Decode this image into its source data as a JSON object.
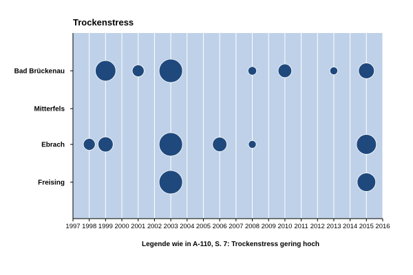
{
  "chart_data": {
    "type": "scatter",
    "title": "Trockenstress",
    "caption": "Legende wie in A-110, S. 7: Trockenstress gering hoch",
    "x_ticks": [
      1997,
      1998,
      1999,
      2000,
      2001,
      2002,
      2003,
      2004,
      2005,
      2006,
      2007,
      2008,
      2009,
      2010,
      2011,
      2012,
      2013,
      2014,
      2015,
      2016
    ],
    "xlim": [
      1997,
      2016
    ],
    "categories": [
      "Bad Brückenau",
      "Mitterfels",
      "Ebrach",
      "Freising"
    ],
    "size_scale": "bubble area ~ drought stress (gering -> hoch)",
    "series": [
      {
        "category": "Bad Brückenau",
        "points": [
          {
            "x": 1999,
            "size": 0.75
          },
          {
            "x": 2001,
            "size": 0.22
          },
          {
            "x": 2003,
            "size": 1.0
          },
          {
            "x": 2008,
            "size": 0.1
          },
          {
            "x": 2010,
            "size": 0.3
          },
          {
            "x": 2013,
            "size": 0.08
          },
          {
            "x": 2015,
            "size": 0.42
          }
        ]
      },
      {
        "category": "Mitterfels",
        "points": []
      },
      {
        "category": "Ebrach",
        "points": [
          {
            "x": 1998,
            "size": 0.22
          },
          {
            "x": 1999,
            "size": 0.38
          },
          {
            "x": 2003,
            "size": 1.0
          },
          {
            "x": 2006,
            "size": 0.34
          },
          {
            "x": 2008,
            "size": 0.08
          },
          {
            "x": 2015,
            "size": 0.7
          }
        ]
      },
      {
        "category": "Freising",
        "points": [
          {
            "x": 2003,
            "size": 1.0
          },
          {
            "x": 2015,
            "size": 0.6
          }
        ]
      }
    ],
    "colors": {
      "plot_bg": "#bfd1e8",
      "grid": "#ffffff",
      "bubble": "#1f497d"
    }
  }
}
